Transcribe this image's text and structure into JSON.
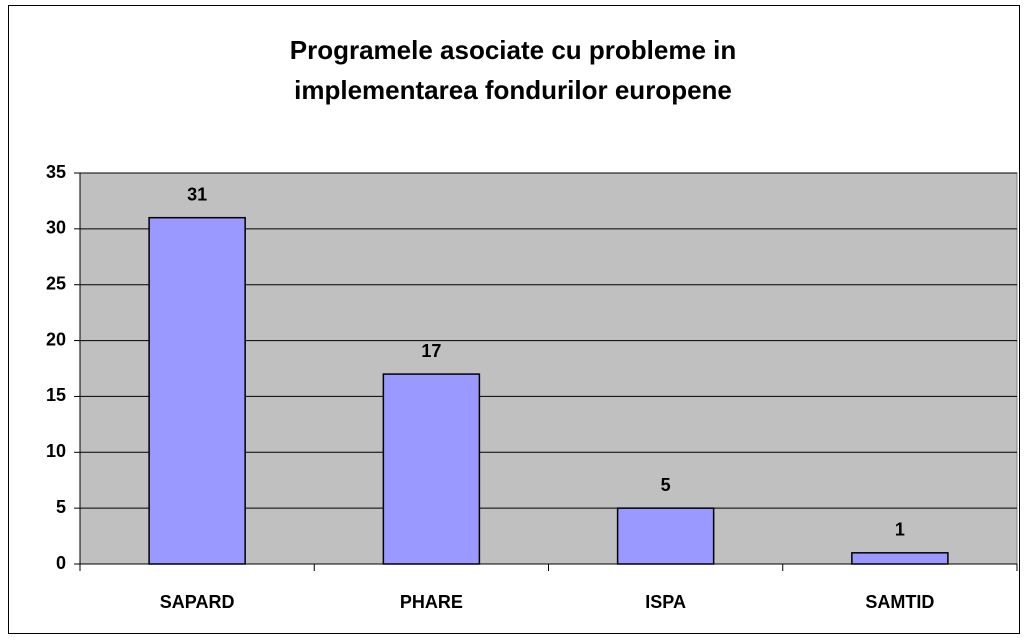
{
  "chart_data": {
    "type": "bar",
    "title": "Programele asociate cu probleme in implementarea fondurilor europene",
    "categories": [
      "SAPARD",
      "PHARE",
      "ISPA",
      "SAMTID"
    ],
    "values": [
      31,
      17,
      5,
      1
    ],
    "color": "#9999ff",
    "ylim": [
      0,
      35
    ],
    "yticks": [
      0,
      5,
      10,
      15,
      20,
      25,
      30,
      35
    ],
    "grid": true
  }
}
